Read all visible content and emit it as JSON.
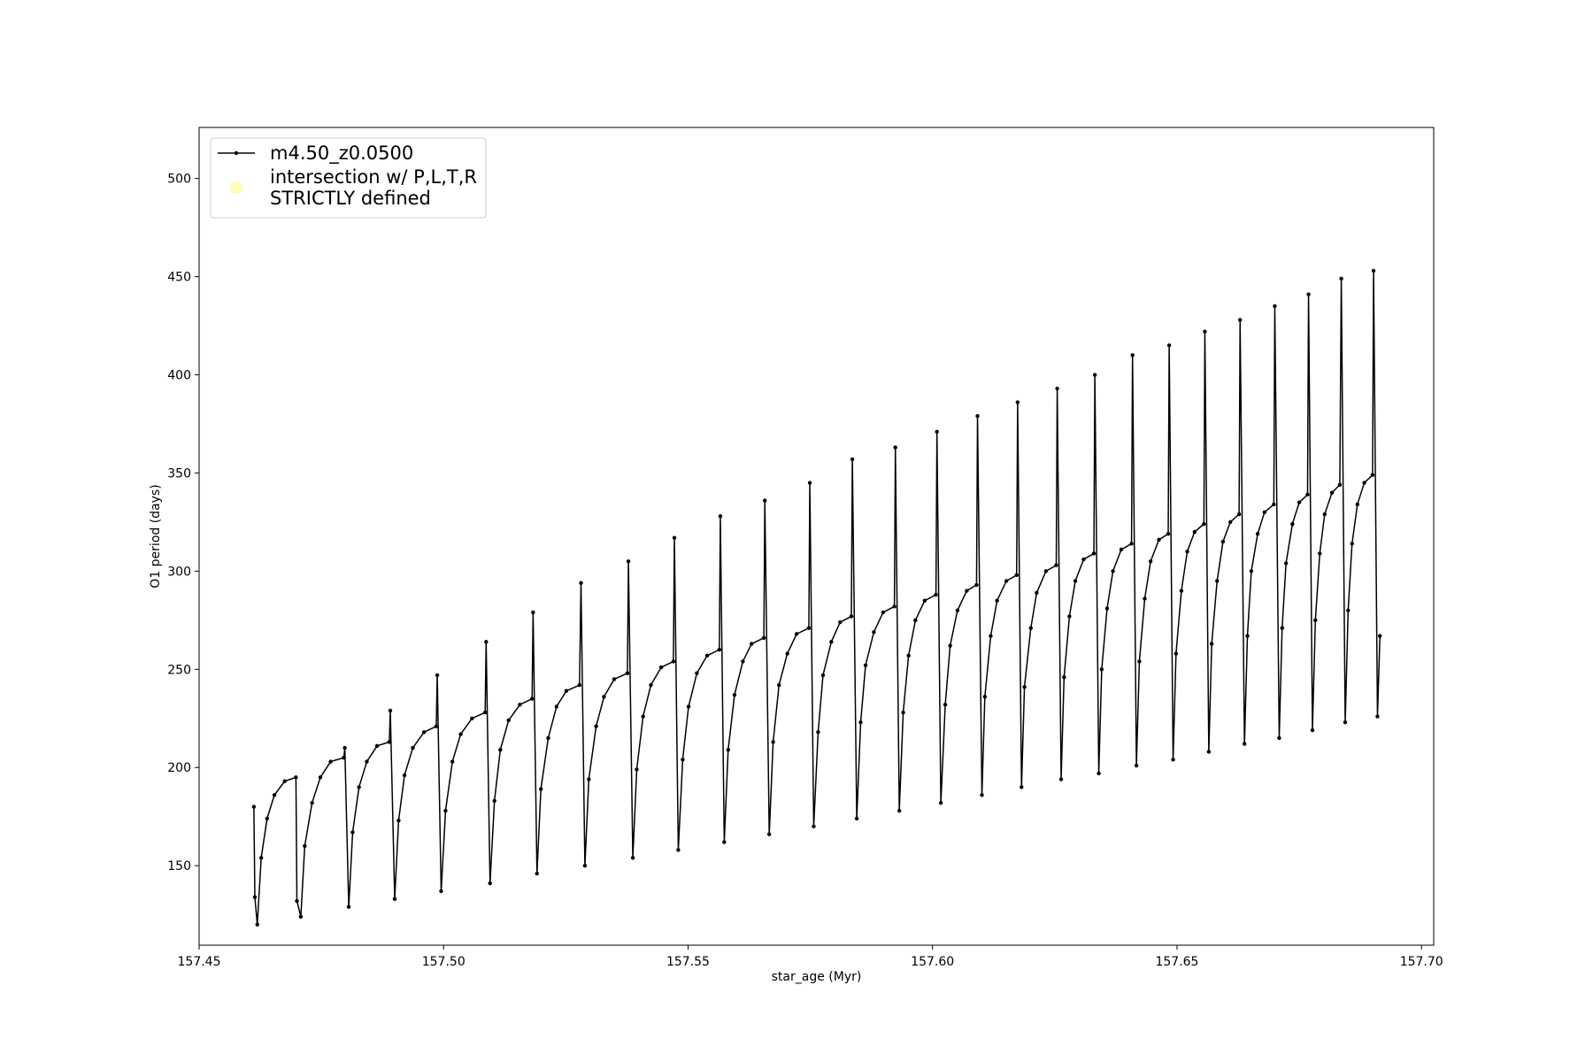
{
  "chart_data": {
    "type": "line",
    "xlabel": "star_age (Myr)",
    "ylabel": "O1 period (days)",
    "xlim": [
      157.45,
      157.7025
    ],
    "ylim": [
      109.5,
      526
    ],
    "xticks": [
      157.45,
      {
        "value": 157.5,
        "label": "157.50"
      },
      157.55,
      {
        "value": 157.6,
        "label": "157.60"
      },
      157.65,
      {
        "value": 157.7,
        "label": "157.70"
      }
    ],
    "yticks": [
      150,
      200,
      250,
      300,
      350,
      400,
      450,
      500
    ],
    "grid": false,
    "legend": "upper left",
    "series": [
      {
        "name": "m4.50_z0.0500",
        "color": "#000000",
        "x": [
          157.4612,
          157.4614,
          157.4619,
          157.4627,
          157.4639,
          157.4654,
          157.4675,
          157.4698,
          157.47,
          157.4708,
          157.4716,
          157.4731,
          157.4748,
          157.4769,
          157.4796,
          157.4798,
          157.4806,
          157.4814,
          157.4827,
          157.4843,
          157.4864,
          157.4889,
          157.4891,
          157.49,
          157.4908,
          157.492,
          157.4937,
          157.496,
          157.4985,
          157.4987,
          157.4995,
          157.5004,
          157.5018,
          157.5035,
          157.5058,
          157.5085,
          157.5087,
          157.5095,
          157.5104,
          157.5116,
          157.5133,
          157.5156,
          157.5181,
          157.5183,
          157.5191,
          157.5199,
          157.5214,
          157.5231,
          157.5251,
          157.5278,
          157.5281,
          157.5289,
          157.5297,
          157.5312,
          157.5328,
          157.5349,
          157.5376,
          157.5378,
          157.5387,
          157.5395,
          157.5408,
          157.5424,
          157.5445,
          157.547,
          157.5472,
          157.548,
          157.5489,
          157.5501,
          157.5518,
          157.5539,
          157.5564,
          157.5566,
          157.5574,
          157.5582,
          157.5595,
          157.5612,
          157.563,
          157.5655,
          157.5657,
          157.5666,
          157.5674,
          157.5686,
          157.5703,
          157.5722,
          157.5747,
          157.5749,
          157.5757,
          157.5766,
          157.5776,
          157.5793,
          157.5811,
          157.5834,
          157.5836,
          157.5845,
          157.5853,
          157.5863,
          157.588,
          157.5899,
          157.5922,
          157.5924,
          157.5932,
          157.594,
          157.5951,
          157.5965,
          157.5984,
          157.6007,
          157.6009,
          157.6017,
          157.6026,
          157.6036,
          157.6051,
          157.607,
          157.609,
          157.6092,
          157.6101,
          157.6107,
          157.6119,
          157.6132,
          157.6151,
          157.6172,
          157.6174,
          157.6182,
          157.6188,
          157.6201,
          157.6213,
          157.6232,
          157.6253,
          157.6255,
          157.6263,
          157.6269,
          157.628,
          157.6292,
          157.6309,
          157.633,
          157.6332,
          157.634,
          157.6346,
          157.6357,
          157.6369,
          157.6386,
          157.6407,
          157.6409,
          157.6417,
          157.6423,
          157.6434,
          157.6446,
          157.6463,
          157.6482,
          157.6484,
          157.6492,
          157.6498,
          157.6509,
          157.6521,
          157.6536,
          157.6555,
          157.6557,
          157.6565,
          157.6571,
          157.6582,
          157.6594,
          157.6609,
          157.6627,
          157.6629,
          157.6638,
          157.6644,
          157.6652,
          157.6665,
          157.6679,
          157.6698,
          157.67,
          157.6709,
          157.6715,
          157.6723,
          157.6736,
          157.675,
          157.6767,
          157.6769,
          157.6777,
          157.6783,
          157.6792,
          157.6802,
          157.6817,
          157.6833,
          157.6836,
          157.6844,
          157.685,
          157.6858,
          157.6869,
          157.6883,
          157.69,
          157.6902,
          157.691,
          157.6915
        ],
        "values": [
          180,
          134,
          120,
          154,
          174,
          186,
          193,
          195,
          132,
          124,
          160,
          182,
          195,
          203,
          205,
          210,
          129,
          167,
          190,
          203,
          211,
          213,
          229,
          133,
          173,
          196,
          210,
          218,
          221,
          247,
          137,
          178,
          203,
          217,
          225,
          228,
          264,
          141,
          183,
          209,
          224,
          232,
          235,
          279,
          146,
          189,
          215,
          231,
          239,
          242,
          294,
          150,
          194,
          221,
          236,
          245,
          248,
          305,
          154,
          199,
          226,
          242,
          251,
          254,
          317,
          158,
          204,
          231,
          248,
          257,
          260,
          328,
          162,
          209,
          237,
          254,
          263,
          266,
          336,
          166,
          213,
          242,
          258,
          268,
          271,
          345,
          170,
          218,
          247,
          264,
          274,
          277,
          357,
          174,
          223,
          252,
          269,
          279,
          282,
          363,
          178,
          228,
          257,
          275,
          285,
          288,
          371,
          182,
          232,
          262,
          280,
          290,
          293,
          379,
          186,
          236,
          267,
          285,
          295,
          298,
          386,
          190,
          241,
          271,
          289,
          300,
          303,
          393,
          194,
          246,
          277,
          295,
          306,
          309,
          400,
          197,
          250,
          281,
          300,
          311,
          314,
          410,
          201,
          254,
          286,
          305,
          316,
          319,
          415,
          204,
          258,
          290,
          310,
          320,
          324,
          422,
          208,
          263,
          295,
          315,
          325,
          329,
          428,
          212,
          267,
          300,
          319,
          330,
          334,
          435,
          215,
          271,
          304,
          324,
          335,
          339,
          441,
          219,
          275,
          309,
          329,
          340,
          344,
          449,
          223,
          280,
          314,
          334,
          345,
          349,
          453,
          226,
          267
        ]
      },
      {
        "name": "intersection w/ P,L,T,R\nSTRICTLY defined",
        "color": "#fdfdb4",
        "x": [],
        "values": []
      }
    ]
  }
}
